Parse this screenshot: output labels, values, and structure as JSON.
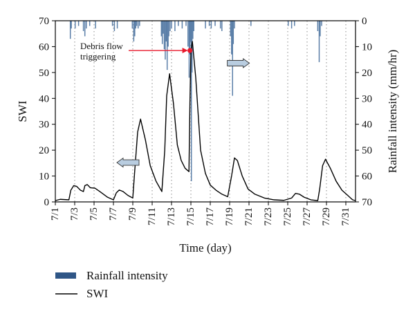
{
  "chart_data": {
    "type": "line",
    "xlabel": "Time (day)",
    "ylabel_left": "SWI",
    "ylabel_right": "Rainfall intensity (mm/hr)",
    "x_ticks": [
      "7/1",
      "7/3",
      "7/5",
      "7/7",
      "7/9",
      "7/11",
      "7/13",
      "7/15",
      "7/17",
      "7/19",
      "7/21",
      "7/23",
      "7/25",
      "7/27",
      "7/29",
      "7/31"
    ],
    "xlim": [
      1,
      32
    ],
    "ylim_left": [
      0,
      70
    ],
    "ylim_right": [
      70,
      0
    ],
    "y_ticks_left": [
      "0",
      "10",
      "20",
      "30",
      "40",
      "50",
      "60",
      "70"
    ],
    "y_ticks_right": [
      "70",
      "60",
      "50",
      "40",
      "30",
      "20",
      "10",
      "0"
    ],
    "right_axis_inverted": true,
    "grid": "dotted vertical at each x tick",
    "legend_position": "below-left",
    "legend": {
      "rainfall_label": "Rainfall intensity",
      "swi_label": "SWI"
    },
    "annotation": {
      "line1": "Debris flow",
      "line2": "triggering",
      "x": 14.9,
      "y": 58.5
    },
    "arrows": [
      {
        "direction": "left",
        "x": 8.5,
        "y": 15.2,
        "meaning": "SWI uses left axis"
      },
      {
        "direction": "right",
        "x": 19.9,
        "y": 53.6,
        "meaning": "Rainfall uses right axis"
      }
    ],
    "colors": {
      "swi": "#000000",
      "rainfall": "#5b7fa8",
      "annotation": "#e8192c",
      "arrow_fill": "#b9cde0",
      "legend_rain": "#2f5686"
    },
    "series": [
      {
        "name": "SWI",
        "axis": "left",
        "points": [
          [
            1.0,
            0.5
          ],
          [
            1.5,
            1.0
          ],
          [
            2.4,
            0.8
          ],
          [
            2.6,
            4.5
          ],
          [
            2.9,
            6.3
          ],
          [
            3.2,
            6.0
          ],
          [
            3.6,
            4.5
          ],
          [
            3.9,
            4.0
          ],
          [
            4.05,
            6.3
          ],
          [
            4.3,
            6.7
          ],
          [
            4.6,
            5.5
          ],
          [
            5.1,
            5.3
          ],
          [
            5.6,
            4.0
          ],
          [
            6.4,
            1.8
          ],
          [
            7.0,
            0.8
          ],
          [
            7.3,
            3.5
          ],
          [
            7.6,
            4.6
          ],
          [
            8.0,
            4.0
          ],
          [
            8.5,
            2.5
          ],
          [
            9.0,
            1.5
          ],
          [
            9.2,
            12.0
          ],
          [
            9.5,
            27.0
          ],
          [
            9.8,
            32.0
          ],
          [
            10.3,
            24.0
          ],
          [
            10.8,
            14.0
          ],
          [
            11.4,
            8.0
          ],
          [
            12.0,
            4.0
          ],
          [
            12.3,
            20.0
          ],
          [
            12.5,
            41.0
          ],
          [
            12.8,
            49.5
          ],
          [
            13.2,
            38.0
          ],
          [
            13.6,
            22.0
          ],
          [
            14.0,
            16.0
          ],
          [
            14.4,
            13.0
          ],
          [
            14.8,
            11.7
          ],
          [
            14.9,
            38.0
          ],
          [
            15.0,
            58.5
          ],
          [
            15.15,
            62.0
          ],
          [
            15.5,
            48.0
          ],
          [
            16.0,
            20.0
          ],
          [
            16.5,
            11.0
          ],
          [
            17.0,
            6.5
          ],
          [
            17.6,
            4.5
          ],
          [
            18.2,
            3.0
          ],
          [
            18.8,
            2.0
          ],
          [
            19.2,
            10.0
          ],
          [
            19.5,
            17.0
          ],
          [
            19.8,
            16.0
          ],
          [
            20.3,
            10.0
          ],
          [
            20.9,
            5.0
          ],
          [
            21.6,
            3.0
          ],
          [
            22.6,
            1.5
          ],
          [
            23.6,
            0.8
          ],
          [
            24.6,
            0.6
          ],
          [
            25.4,
            1.5
          ],
          [
            25.8,
            3.3
          ],
          [
            26.2,
            3.0
          ],
          [
            26.7,
            1.8
          ],
          [
            27.4,
            0.8
          ],
          [
            28.1,
            0.5
          ],
          [
            28.3,
            5.0
          ],
          [
            28.6,
            14.0
          ],
          [
            28.9,
            16.5
          ],
          [
            29.4,
            13.0
          ],
          [
            30.0,
            8.0
          ],
          [
            30.6,
            4.5
          ],
          [
            31.2,
            2.5
          ],
          [
            31.7,
            0.8
          ],
          [
            32.0,
            0.5
          ]
        ]
      },
      {
        "name": "Rainfall intensity",
        "axis": "right",
        "unit": "mm/hr",
        "bars": [
          [
            2.55,
            7
          ],
          [
            2.65,
            3
          ],
          [
            3.05,
            3
          ],
          [
            3.4,
            2
          ],
          [
            3.9,
            4
          ],
          [
            4.05,
            6
          ],
          [
            4.2,
            3
          ],
          [
            4.55,
            2
          ],
          [
            5.15,
            3
          ],
          [
            6.9,
            2
          ],
          [
            7.1,
            4
          ],
          [
            7.4,
            3
          ],
          [
            8.95,
            3
          ],
          [
            9.1,
            8
          ],
          [
            9.2,
            6
          ],
          [
            9.3,
            3
          ],
          [
            9.4,
            2
          ],
          [
            9.55,
            3
          ],
          [
            9.7,
            2
          ],
          [
            11.95,
            6
          ],
          [
            12.05,
            9
          ],
          [
            12.15,
            5
          ],
          [
            12.25,
            11
          ],
          [
            12.35,
            15
          ],
          [
            12.45,
            8
          ],
          [
            12.55,
            19
          ],
          [
            12.65,
            10
          ],
          [
            12.72,
            6
          ],
          [
            12.85,
            4
          ],
          [
            13.0,
            3
          ],
          [
            13.35,
            4
          ],
          [
            13.7,
            2
          ],
          [
            14.1,
            3
          ],
          [
            14.5,
            2
          ],
          [
            14.7,
            10
          ],
          [
            14.82,
            22
          ],
          [
            14.9,
            13
          ],
          [
            14.97,
            8
          ],
          [
            15.05,
            62
          ],
          [
            15.12,
            20
          ],
          [
            15.2,
            7
          ],
          [
            15.3,
            4
          ],
          [
            16.5,
            3
          ],
          [
            16.9,
            2
          ],
          [
            17.1,
            3
          ],
          [
            17.5,
            2
          ],
          [
            18.05,
            3
          ],
          [
            18.2,
            4
          ],
          [
            19.1,
            6
          ],
          [
            19.2,
            13
          ],
          [
            19.3,
            29
          ],
          [
            19.38,
            9
          ],
          [
            19.5,
            3
          ],
          [
            21.2,
            2
          ],
          [
            25.05,
            2
          ],
          [
            25.4,
            3
          ],
          [
            25.7,
            2
          ],
          [
            28.1,
            4
          ],
          [
            28.25,
            16
          ],
          [
            28.35,
            6
          ],
          [
            28.5,
            2
          ]
        ]
      }
    ]
  }
}
